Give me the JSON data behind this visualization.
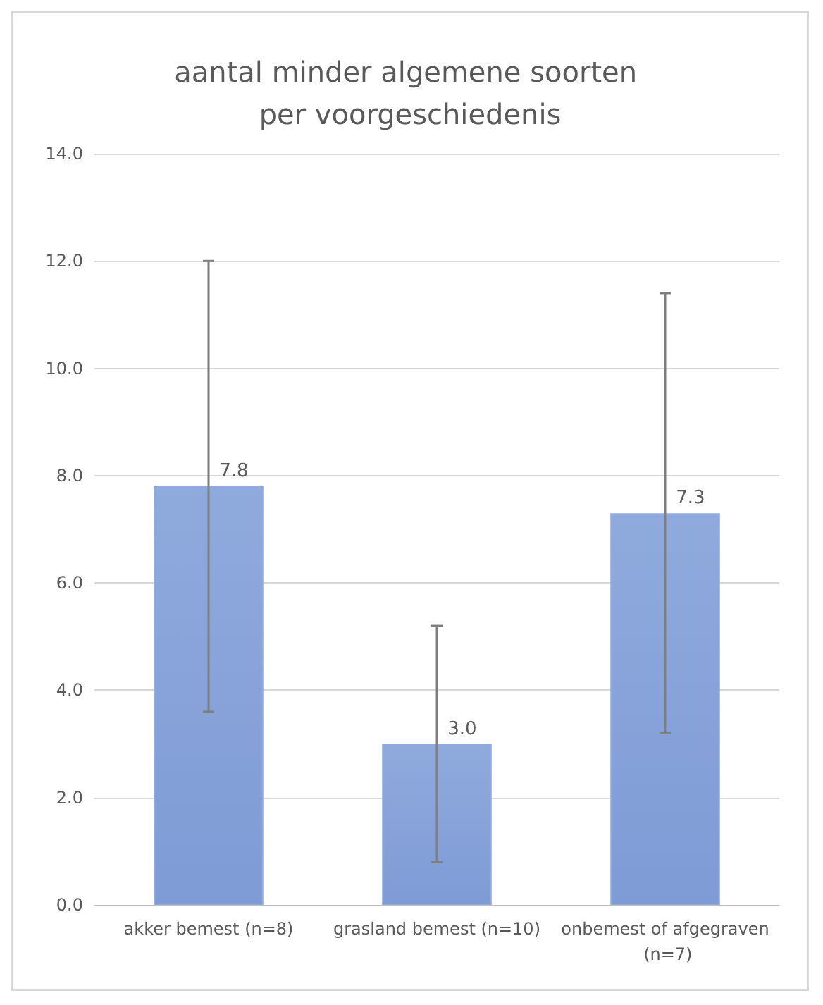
{
  "chart_data": {
    "type": "bar",
    "title": "aantal minder algemene soorten per voorgeschiedenis",
    "categories": [
      "akker bemest (n=8)",
      "grasland bemest (n=10)",
      "onbemest of afgegraven (n=7)"
    ],
    "values": [
      7.8,
      3.0,
      7.3
    ],
    "errors": [
      4.2,
      2.2,
      4.1
    ],
    "color": "#8faadc",
    "ylim": [
      0,
      14
    ],
    "yticks": [
      {
        "value": 0,
        "label": "0.0"
      },
      {
        "value": 2,
        "label": "2.0"
      },
      {
        "value": 4,
        "label": "4.0"
      },
      {
        "value": 6,
        "label": "6.0"
      },
      {
        "value": 8,
        "label": "8.0"
      },
      {
        "value": 10,
        "label": "10.0"
      },
      {
        "value": 12,
        "label": "12.0"
      },
      {
        "value": 14,
        "label": "14.0"
      }
    ],
    "value_labels": [
      "7.8",
      "3.0",
      "7.3"
    ],
    "grid": "y"
  }
}
